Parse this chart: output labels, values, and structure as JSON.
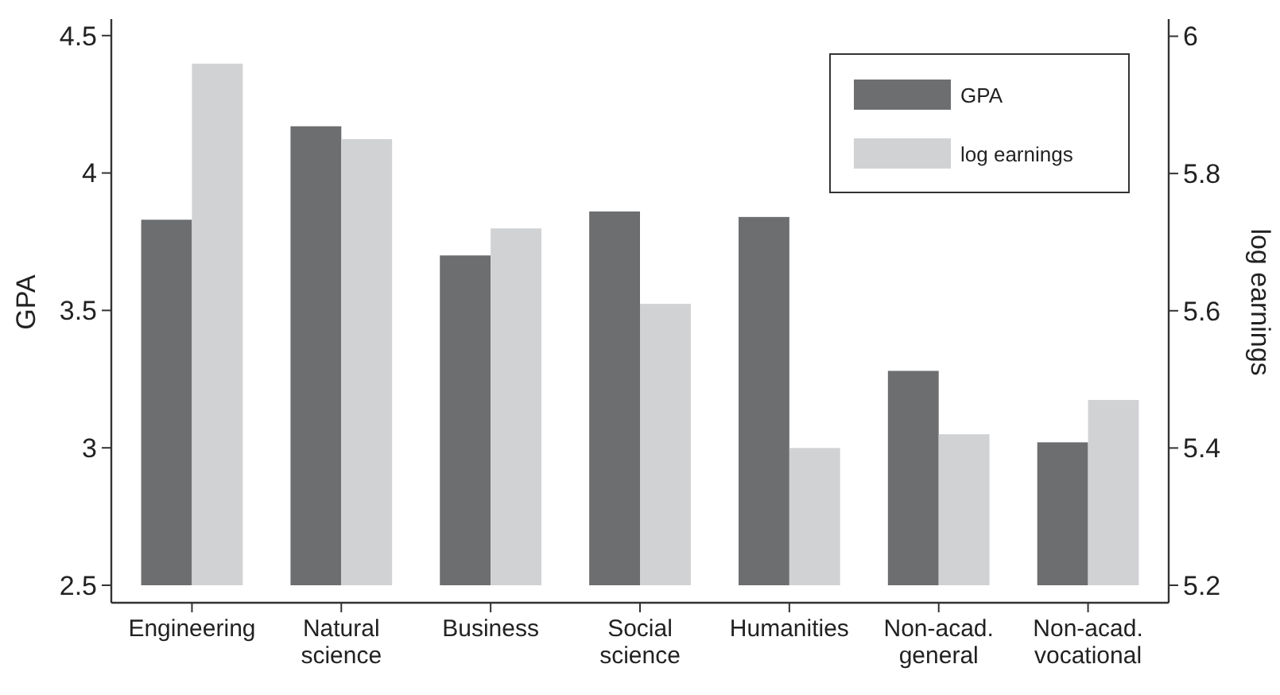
{
  "chart_data": {
    "type": "bar",
    "ylabel": "GPA",
    "y2label": "log earnings",
    "categories": [
      "Engineering",
      "Natural science",
      "Business",
      "Social science",
      "Humanities",
      "Non-acad. general",
      "Non-acad. vocational"
    ],
    "series": [
      {
        "name": "GPA",
        "color": "#6d6e70",
        "values": [
          3.83,
          4.17,
          3.7,
          3.86,
          3.84,
          3.28,
          3.02
        ]
      },
      {
        "name": "log earnings",
        "color": "#d1d2d4",
        "axis": "y2",
        "values": [
          5.96,
          5.85,
          5.72,
          5.61,
          5.4,
          5.42,
          5.47
        ]
      }
    ],
    "ylim": [
      2.5,
      4.56
    ],
    "yticks": [
      2.5,
      3,
      3.5,
      4,
      4.5
    ],
    "y2lim": [
      5.2,
      6.025
    ],
    "y2ticks": [
      5.2,
      5.4,
      5.6,
      5.8,
      6
    ],
    "legend": "top right",
    "grid": false
  }
}
